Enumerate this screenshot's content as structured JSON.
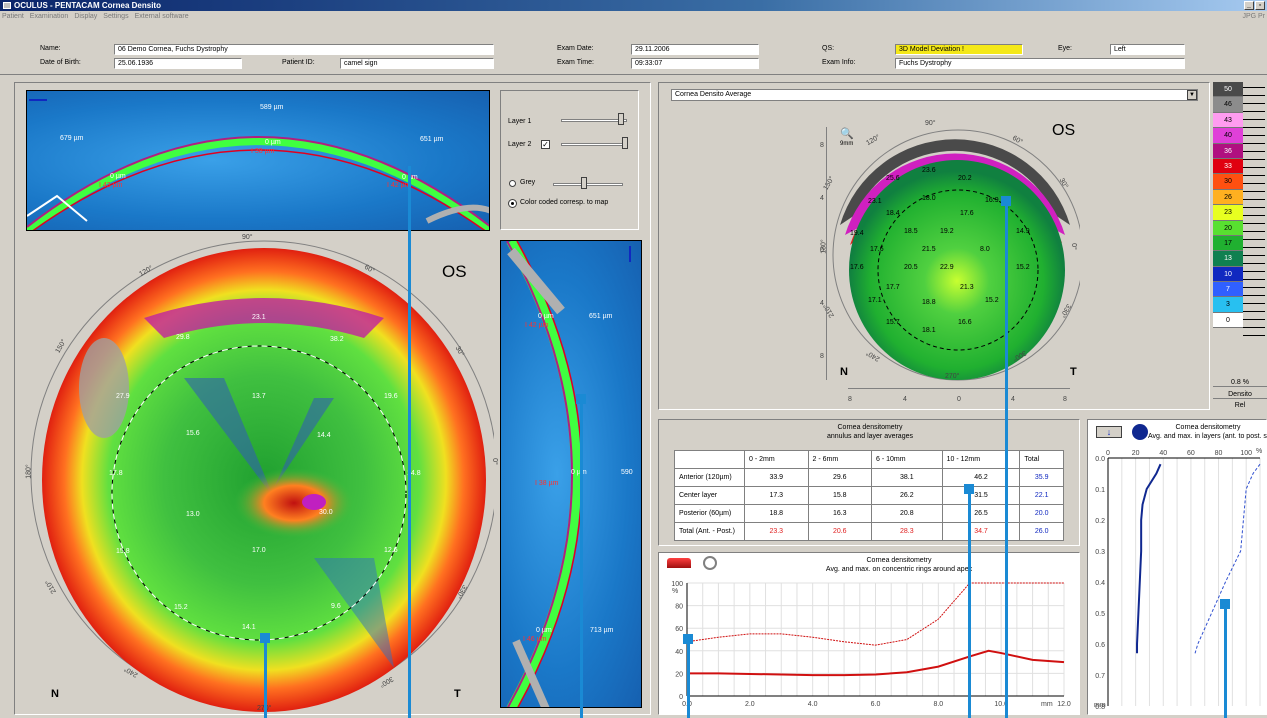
{
  "window": {
    "title": "OCULUS - PENTACAM  Cornea Densito",
    "right_menu": "JPG  Pr"
  },
  "menu": [
    "Patient",
    "Examination",
    "Display",
    "Settings",
    "External software"
  ],
  "patient": {
    "name_label": "Name:",
    "name": "06 Demo Cornea, Fuchs Dystrophy",
    "dob_label": "Date of Birth:",
    "dob": "25.06.1936",
    "pid_label": "Patient ID:",
    "pid": "camel sign",
    "exam_date_label": "Exam Date:",
    "exam_date": "29.11.2006",
    "exam_time_label": "Exam Time:",
    "exam_time": "09:33:07",
    "qs_label": "QS:",
    "qs": "3D Model Deviation !",
    "exam_info_label": "Exam Info:",
    "exam_info": "Fuchs Dystrophy",
    "eye_label": "Eye:",
    "eye": "Left"
  },
  "scheimpflug_top": {
    "m1": "589 µm",
    "m2": "0 µm",
    "m3": "38 µm",
    "m4": "679 µm",
    "m5": "0 µm",
    "m6": "43 µm",
    "m7": "651 µm",
    "m8": "0 µm",
    "m9": "42 µm"
  },
  "scheimpflug_side": {
    "a1": "0 µm",
    "a2": "42 µm",
    "a3": "651 µm",
    "b1": "0 µm",
    "b2": "38 µm",
    "b3": "590",
    "c1": "0 µm",
    "c2": "46 µm",
    "c3": "713 µm"
  },
  "layers": {
    "layer1": "Layer 1",
    "layer2": "Layer 2",
    "grey": "Grey",
    "color_coded": "Color coded corresp. to map"
  },
  "big_map": {
    "eye": "OS",
    "nasal": "N",
    "temporal": "T",
    "deg90": "90°",
    "deg270": "270°",
    "deg0": "0°",
    "deg180": "180°",
    "deg120": "120°",
    "deg60": "60°",
    "deg150": "150°",
    "deg30": "30°",
    "deg210": "210°",
    "deg330": "330°",
    "deg240": "240°",
    "deg300": "300°",
    "values": [
      "23.1",
      "29.8",
      "38.2",
      "27.9",
      "19.6",
      "13.7",
      "15.6",
      "14.4",
      "17.8",
      "14.8",
      "13.0",
      "30.0",
      "17.0",
      "15.8",
      "12.6",
      "15.2",
      "9.6",
      "14.1"
    ]
  },
  "densito_map": {
    "dropdown": "Cornea Densito Average",
    "eye": "OS",
    "nasal": "N",
    "temporal": "T",
    "scale_label": "9mm",
    "deg90": "90°",
    "deg120": "120°",
    "deg60": "60°",
    "deg150": "150°",
    "deg30": "30°",
    "deg180": "180°",
    "deg0": "0°",
    "deg210": "210°",
    "deg330": "330°",
    "deg240": "240°",
    "deg300": "300°",
    "deg270": "270°",
    "yticks": [
      "8",
      "4",
      "0",
      "4",
      "8"
    ],
    "xticks": [
      "8",
      "4",
      "0",
      "4",
      "8"
    ],
    "values": [
      "25.6",
      "23.6",
      "20.2",
      "23.1",
      "18.0",
      "16.9",
      "18.4",
      "17.6",
      "19.4",
      "18.5",
      "19.2",
      "14.9",
      "17.6",
      "21.5",
      "8.0",
      "17.6",
      "20.5",
      "22.9",
      "15.2",
      "17.7",
      "21.3",
      "17.1",
      "18.8",
      "15.2",
      "15.7",
      "18.1",
      "16.6"
    ]
  },
  "color_scale": {
    "values": [
      "50",
      "46",
      "43",
      "40",
      "36",
      "33",
      "30",
      "26",
      "23",
      "20",
      "17",
      "13",
      "10",
      "7",
      "3",
      "0"
    ],
    "colors": [
      "#4a4a4a",
      "#8c8c8c",
      "#ff9cf0",
      "#e040d8",
      "#b01080",
      "#e00010",
      "#ff5010",
      "#ffb020",
      "#e8ff20",
      "#58e030",
      "#20b030",
      "#108050",
      "#1028c0",
      "#3060ff",
      "#28c0f0",
      "#ffffff"
    ],
    "percent": "0.8 %",
    "densito": "Densito",
    "rel": "Rel"
  },
  "table_panel": {
    "title1": "Cornea densitometry",
    "title2": "annulus and layer averages",
    "headers": [
      "",
      "0 - 2mm",
      "2 - 6mm",
      "6 - 10mm",
      "10 - 12mm",
      "Total"
    ],
    "rows": [
      [
        "Anterior (120µm)",
        "33.9",
        "29.6",
        "38.1",
        "46.2",
        "35.9"
      ],
      [
        "Center layer",
        "17.3",
        "15.8",
        "26.2",
        "31.5",
        "22.1"
      ],
      [
        "Posterior (60µm)",
        "18.8",
        "16.3",
        "20.8",
        "26.5",
        "20.0"
      ],
      [
        "Total (Ant. - Post.)",
        "23.3",
        "20.6",
        "28.3",
        "34.7",
        "26.0"
      ]
    ]
  },
  "rings_chart": {
    "title1": "Cornea densitometry",
    "title2": "Avg. and max. on concentric rings around apex",
    "y_unit": "%",
    "x_unit": "mm",
    "chart_data": {
      "type": "line",
      "x": [
        0,
        1,
        2,
        3,
        4,
        5,
        6,
        7,
        8,
        9,
        9.6,
        10,
        11,
        12
      ],
      "series": [
        {
          "values": [
            20,
            20,
            19.5,
            19,
            18.5,
            18.5,
            19,
            21,
            26,
            35,
            40,
            38,
            32,
            30
          ]
        },
        {
          "values": [
            48,
            52,
            55,
            55,
            52,
            48,
            45,
            50,
            68,
            100,
            100,
            100,
            100,
            100
          ]
        }
      ],
      "xlim": [
        0,
        12
      ],
      "ylim": [
        0,
        100
      ],
      "xticks": [
        "0.0",
        "2.0",
        "4.0",
        "6.0",
        "8.0",
        "10.0",
        "12.0"
      ],
      "yticks": [
        "0",
        "20",
        "40",
        "60",
        "80",
        "100"
      ]
    }
  },
  "layers_chart": {
    "title1": "Cornea densitometry",
    "title2": "Avg. and max. in layers (ant. to post. surf",
    "x_unit": "%",
    "y_unit": "mm",
    "chart_data": {
      "type": "line",
      "x_ticks": [
        "0",
        "20",
        "40",
        "60",
        "80",
        "100"
      ],
      "y_ticks": [
        "0.0",
        "0.1",
        "0.2",
        "0.3",
        "0.4",
        "0.5",
        "0.6",
        "0.7",
        "0.8"
      ],
      "depth": [
        0.02,
        0.05,
        0.1,
        0.15,
        0.2,
        0.3,
        0.4,
        0.5,
        0.6,
        0.63
      ],
      "series": [
        {
          "values": [
            38,
            35,
            28,
            25,
            24,
            24,
            23,
            22,
            21,
            21
          ]
        },
        {
          "values": [
            110,
            105,
            100,
            99,
            98,
            96,
            85,
            75,
            65,
            63
          ]
        }
      ],
      "xlim": [
        0,
        110
      ],
      "ylim": [
        0,
        0.8
      ]
    }
  }
}
